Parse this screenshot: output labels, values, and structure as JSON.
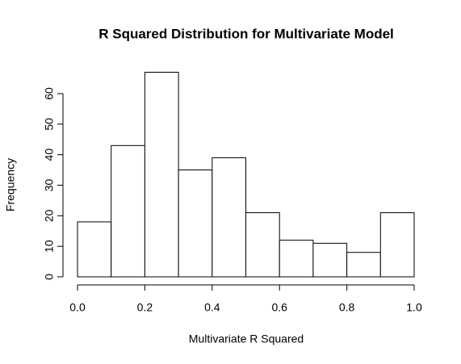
{
  "chart_data": {
    "type": "histogram",
    "title": "R Squared Distribution for Multivariate Model",
    "x_label": "Multivariate R Squared",
    "y_label": "Frequency",
    "bins": [
      0,
      0.1,
      0.2,
      0.3,
      0.4,
      0.5,
      0.6,
      0.7,
      0.8,
      0.9,
      1
    ],
    "values": [
      18,
      43,
      67,
      35,
      39,
      21,
      12,
      11,
      8,
      21
    ],
    "color": "#ffffff",
    "xlim": [
      0,
      1
    ],
    "xticks": [
      {
        "value": 0,
        "label": "0.0"
      },
      0.2,
      0.4,
      0.6,
      0.8,
      {
        "value": 1,
        "label": "1.0"
      }
    ],
    "ylim": [
      0,
      70
    ],
    "yticks": [
      0,
      10,
      20,
      30,
      40,
      50,
      60
    ]
  }
}
